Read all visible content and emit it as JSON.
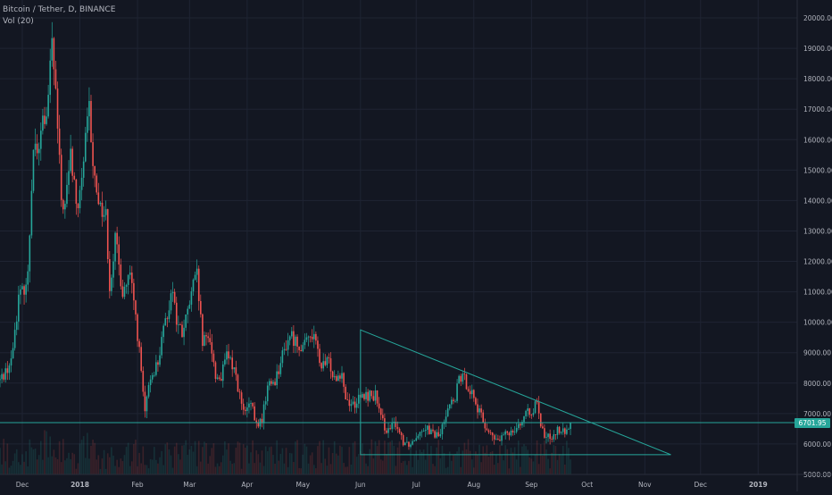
{
  "header": {
    "symbol_line": "Bitcoin / Tether, D, BINANCE",
    "volume_line": "Vol (20)"
  },
  "colors": {
    "background": "#131722",
    "grid": "#1f2433",
    "up": "#26a69a",
    "down": "#ef5350",
    "axis_text": "#b2b5be",
    "trendline": "#26a69a"
  },
  "chart_data": {
    "type": "candlestick",
    "symbol": "Bitcoin / Tether",
    "interval": "D",
    "exchange": "BINANCE",
    "indicator": "Vol (20)",
    "y_axis": {
      "ticks": [
        5000,
        6000,
        7000,
        8000,
        9000,
        10000,
        11000,
        12000,
        13000,
        14000,
        15000,
        16000,
        17000,
        18000,
        19000,
        20000
      ],
      "tick_labels": [
        "5000.00",
        "6000.00",
        "7000.00",
        "8000.00",
        "9000.00",
        "10000.00",
        "11000.00",
        "12000.00",
        "13000.00",
        "14000.00",
        "15000.00",
        "16000.00",
        "17000.00",
        "18000.00",
        "19000.00",
        "20000.00"
      ],
      "range": [
        5000,
        20300
      ]
    },
    "x_axis": {
      "labels": [
        "Dec",
        "2018",
        "Feb",
        "Mar",
        "Apr",
        "May",
        "Jun",
        "Jul",
        "Aug",
        "Sep",
        "Oct",
        "Nov",
        "Dec",
        "2019"
      ],
      "dates": [
        "2017-12-01",
        "2018-01-01",
        "2018-02-01",
        "2018-03-01",
        "2018-04-01",
        "2018-05-01",
        "2018-06-01",
        "2018-07-01",
        "2018-08-01",
        "2018-09-01",
        "2018-10-01",
        "2018-11-01",
        "2018-12-01",
        "2019-01-01"
      ],
      "range": [
        "2017-11-19",
        "2019-01-22"
      ]
    },
    "last_price": 6701.95,
    "last_price_label": "6701.95",
    "price_path": [
      [
        "2017-11-19",
        8100
      ],
      [
        "2017-11-25",
        8700
      ],
      [
        "2017-11-29",
        10800
      ],
      [
        "2017-12-01",
        11000
      ],
      [
        "2017-12-04",
        11500
      ],
      [
        "2017-12-07",
        16000
      ],
      [
        "2017-12-10",
        15500
      ],
      [
        "2017-12-12",
        16800
      ],
      [
        "2017-12-14",
        16500
      ],
      [
        "2017-12-17",
        19200
      ],
      [
        "2017-12-19",
        17500
      ],
      [
        "2017-12-22",
        14000
      ],
      [
        "2017-12-24",
        13800
      ],
      [
        "2017-12-27",
        15500
      ],
      [
        "2017-12-31",
        13500
      ],
      [
        "2018-01-02",
        14800
      ],
      [
        "2018-01-06",
        17000
      ],
      [
        "2018-01-08",
        15000
      ],
      [
        "2018-01-12",
        13800
      ],
      [
        "2018-01-15",
        13500
      ],
      [
        "2018-01-17",
        11200
      ],
      [
        "2018-01-20",
        12700
      ],
      [
        "2018-01-24",
        11000
      ],
      [
        "2018-01-28",
        11500
      ],
      [
        "2018-01-31",
        10200
      ],
      [
        "2018-02-02",
        9000
      ],
      [
        "2018-02-05",
        7000
      ],
      [
        "2018-02-08",
        8200
      ],
      [
        "2018-02-12",
        8700
      ],
      [
        "2018-02-16",
        10000
      ],
      [
        "2018-02-20",
        11200
      ],
      [
        "2018-02-22",
        10000
      ],
      [
        "2018-02-25",
        9600
      ],
      [
        "2018-02-28",
        10300
      ],
      [
        "2018-03-03",
        11200
      ],
      [
        "2018-03-05",
        11500
      ],
      [
        "2018-03-08",
        9300
      ],
      [
        "2018-03-12",
        9500
      ],
      [
        "2018-03-15",
        8200
      ],
      [
        "2018-03-18",
        8200
      ],
      [
        "2018-03-21",
        8900
      ],
      [
        "2018-03-25",
        8500
      ],
      [
        "2018-03-30",
        7000
      ],
      [
        "2018-04-03",
        7300
      ],
      [
        "2018-04-06",
        6600
      ],
      [
        "2018-04-09",
        6800
      ],
      [
        "2018-04-12",
        7900
      ],
      [
        "2018-04-16",
        8100
      ],
      [
        "2018-04-20",
        8900
      ],
      [
        "2018-04-24",
        9600
      ],
      [
        "2018-04-28",
        9300
      ],
      [
        "2018-05-02",
        9200
      ],
      [
        "2018-05-05",
        9700
      ],
      [
        "2018-05-08",
        9300
      ],
      [
        "2018-05-11",
        8500
      ],
      [
        "2018-05-15",
        8700
      ],
      [
        "2018-05-18",
        8200
      ],
      [
        "2018-05-22",
        8400
      ],
      [
        "2018-05-24",
        7500
      ],
      [
        "2018-05-28",
        7300
      ],
      [
        "2018-06-01",
        7500
      ],
      [
        "2018-06-05",
        7600
      ],
      [
        "2018-06-09",
        7600
      ],
      [
        "2018-06-12",
        6800
      ],
      [
        "2018-06-16",
        6400
      ],
      [
        "2018-06-20",
        6700
      ],
      [
        "2018-06-24",
        6100
      ],
      [
        "2018-06-28",
        6000
      ],
      [
        "2018-07-02",
        6400
      ],
      [
        "2018-07-06",
        6600
      ],
      [
        "2018-07-10",
        6300
      ],
      [
        "2018-07-14",
        6300
      ],
      [
        "2018-07-18",
        7300
      ],
      [
        "2018-07-22",
        7400
      ],
      [
        "2018-07-24",
        8200
      ],
      [
        "2018-07-27",
        8100
      ],
      [
        "2018-07-31",
        7700
      ],
      [
        "2018-08-04",
        7000
      ],
      [
        "2018-08-08",
        6500
      ],
      [
        "2018-08-11",
        6200
      ],
      [
        "2018-08-14",
        6100
      ],
      [
        "2018-08-18",
        6300
      ],
      [
        "2018-08-22",
        6500
      ],
      [
        "2018-08-26",
        6700
      ],
      [
        "2018-08-30",
        7000
      ],
      [
        "2018-09-04",
        7300
      ],
      [
        "2018-09-06",
        6500
      ],
      [
        "2018-09-09",
        6200
      ],
      [
        "2018-09-12",
        6300
      ],
      [
        "2018-09-16",
        6500
      ],
      [
        "2018-09-19",
        6300
      ],
      [
        "2018-09-22",
        6702
      ]
    ],
    "annotations": {
      "horizontal_line": {
        "price": 6701.95
      },
      "triangle": {
        "points": [
          {
            "date": "2018-06-01",
            "price": 9750
          },
          {
            "date": "2018-11-15",
            "price": 5650
          },
          {
            "date": "2018-06-01",
            "price": 5650
          }
        ]
      }
    }
  }
}
